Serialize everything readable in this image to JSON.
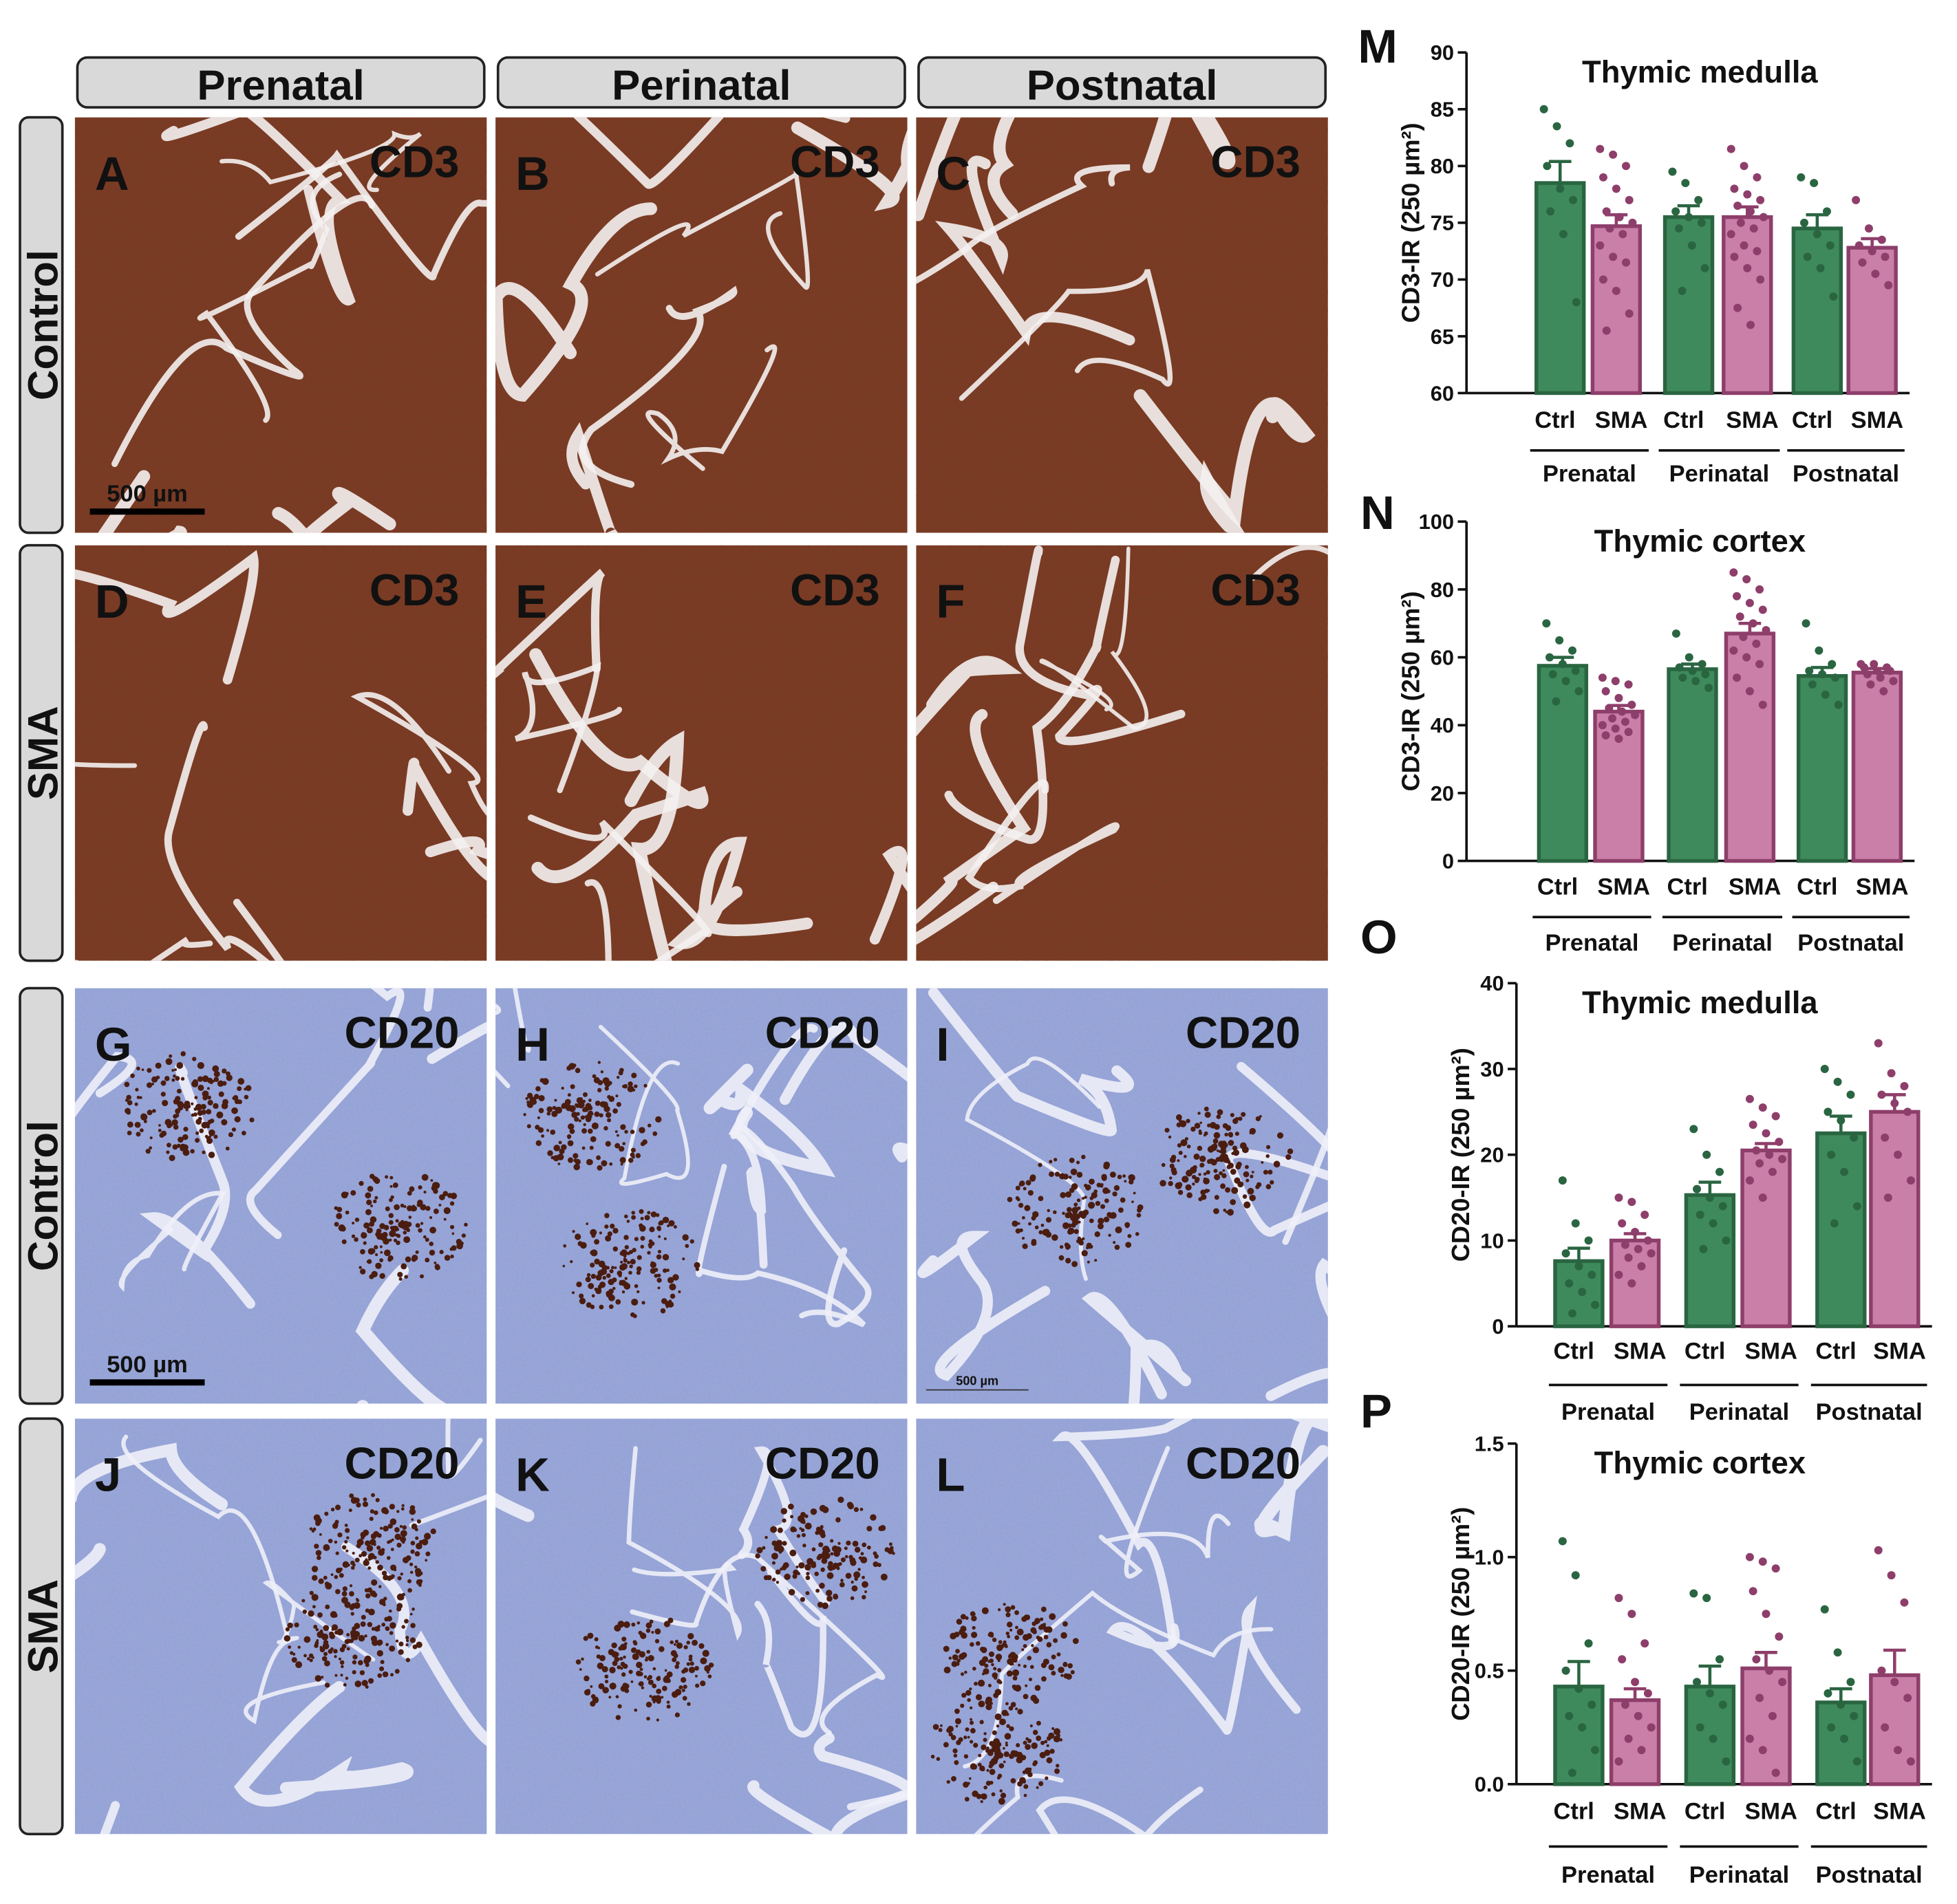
{
  "columns": [
    "Prenatal",
    "Perinatal",
    "Postnatal"
  ],
  "rows": [
    "Control",
    "SMA",
    "Control",
    "SMA"
  ],
  "panels": [
    [
      {
        "letter": "A",
        "stain": "CD3",
        "scale_bar": "500 µm"
      },
      {
        "letter": "B",
        "stain": "CD3"
      },
      {
        "letter": "C",
        "stain": "CD3"
      }
    ],
    [
      {
        "letter": "D",
        "stain": "CD3"
      },
      {
        "letter": "E",
        "stain": "CD3"
      },
      {
        "letter": "F",
        "stain": "CD3"
      }
    ],
    [
      {
        "letter": "G",
        "stain": "CD20",
        "scale_bar": "500 µm"
      },
      {
        "letter": "H",
        "stain": "CD20"
      },
      {
        "letter": "I",
        "stain": "CD20",
        "scale_bar": "500 µm"
      }
    ],
    [
      {
        "letter": "J",
        "stain": "CD20"
      },
      {
        "letter": "K",
        "stain": "CD20"
      },
      {
        "letter": "L",
        "stain": "CD20"
      }
    ]
  ],
  "chart_data": [
    {
      "type": "bar",
      "panel": "M",
      "title": "Thymic medulla",
      "ylabel": "CD3-IR (250 µm²)",
      "categories": [
        "Ctrl",
        "SMA",
        "Ctrl",
        "SMA",
        "Ctrl",
        "SMA"
      ],
      "groups": [
        "Prenatal",
        "Perinatal",
        "Postnatal"
      ],
      "bar_colors": [
        "#3e8a5c",
        "#c97fa8",
        "#3e8a5c",
        "#c97fa8",
        "#3e8a5c",
        "#c97fa8"
      ],
      "edge_colors": [
        "#2a6541",
        "#8e3e6a",
        "#2a6541",
        "#8e3e6a",
        "#2a6541",
        "#8e3e6a"
      ],
      "values": [
        78.5,
        74.7,
        75.5,
        75.5,
        74.5,
        72.8
      ],
      "errors": [
        1.9,
        1.0,
        1.0,
        0.9,
        1.2,
        0.8
      ],
      "points": [
        [
          85,
          83.5,
          82,
          80,
          78,
          77,
          76,
          74,
          68
        ],
        [
          81.5,
          81,
          80,
          79,
          78,
          77,
          76,
          75.5,
          75,
          74.5,
          74,
          73,
          72,
          71.5,
          70,
          69,
          67,
          65.5
        ],
        [
          79.5,
          78.5,
          77,
          76,
          75.5,
          75,
          74.5,
          73,
          71,
          69
        ],
        [
          81.5,
          80,
          79,
          78,
          77.5,
          77,
          76.5,
          76,
          75.5,
          75,
          74.5,
          74,
          73,
          72.5,
          72,
          71,
          70,
          67.5,
          66
        ],
        [
          79,
          78.5,
          76,
          75,
          74,
          73,
          72,
          71,
          68.5
        ],
        [
          77,
          74.5,
          73.5,
          73,
          72.5,
          72,
          71.5,
          70.5,
          69.5
        ]
      ],
      "ylim": [
        60,
        90
      ],
      "yticks": [
        60,
        65,
        70,
        75,
        80,
        85,
        90
      ]
    },
    {
      "type": "bar",
      "panel": "N",
      "title": "Thymic cortex",
      "ylabel": "CD3-IR (250 µm²)",
      "categories": [
        "Ctrl",
        "SMA",
        "Ctrl",
        "SMA",
        "Ctrl",
        "SMA"
      ],
      "groups": [
        "Prenatal",
        "Perinatal",
        "Postnatal"
      ],
      "bar_colors": [
        "#3e8a5c",
        "#c97fa8",
        "#3e8a5c",
        "#c97fa8",
        "#3e8a5c",
        "#c97fa8"
      ],
      "edge_colors": [
        "#2a6541",
        "#8e3e6a",
        "#2a6541",
        "#8e3e6a",
        "#2a6541",
        "#8e3e6a"
      ],
      "values": [
        57.5,
        44,
        56.5,
        67,
        54.5,
        55.5
      ],
      "errors": [
        2.5,
        1.8,
        1.5,
        3,
        2.5,
        1.2
      ],
      "points": [
        [
          70,
          65,
          62,
          60,
          58,
          56,
          55,
          53,
          50,
          47
        ],
        [
          54,
          53,
          52,
          50,
          48,
          46,
          45,
          44,
          43,
          42,
          41,
          40,
          39,
          38,
          37,
          36
        ],
        [
          67,
          60,
          58,
          57,
          56,
          55,
          54,
          53,
          51
        ],
        [
          85,
          83,
          80,
          78,
          76,
          74,
          72,
          70,
          68,
          66,
          64,
          62,
          60,
          58,
          54,
          50,
          46
        ],
        [
          70,
          62,
          58,
          56,
          55,
          54,
          52,
          49,
          46
        ],
        [
          58,
          58,
          57,
          57,
          56,
          56,
          55,
          54,
          53,
          52,
          50
        ]
      ],
      "ylim": [
        0,
        100
      ],
      "yticks": [
        0,
        20,
        40,
        60,
        80,
        100
      ]
    },
    {
      "type": "bar",
      "panel": "O",
      "title": "Thymic medulla",
      "ylabel": "CD20-IR (250 µm²)",
      "categories": [
        "Ctrl",
        "SMA",
        "Ctrl",
        "SMA",
        "Ctrl",
        "SMA"
      ],
      "groups": [
        "Prenatal",
        "Perinatal",
        "Postnatal"
      ],
      "bar_colors": [
        "#3e8a5c",
        "#c97fa8",
        "#3e8a5c",
        "#c97fa8",
        "#3e8a5c",
        "#c97fa8"
      ],
      "edge_colors": [
        "#2a6541",
        "#8e3e6a",
        "#2a6541",
        "#8e3e6a",
        "#2a6541",
        "#8e3e6a"
      ],
      "values": [
        7.6,
        10,
        15.3,
        20.5,
        22.5,
        25
      ],
      "errors": [
        1.5,
        0.8,
        1.5,
        0.8,
        2,
        2
      ],
      "points": [
        [
          17,
          12,
          10,
          8.5,
          7,
          6,
          5,
          4,
          2.5,
          1.5
        ],
        [
          15,
          14.5,
          13,
          12,
          11,
          10,
          9.5,
          9,
          8.5,
          8,
          7,
          6,
          5
        ],
        [
          23,
          20,
          18,
          16,
          15,
          14,
          13,
          12,
          10,
          9
        ],
        [
          26.5,
          25.5,
          24.5,
          23.5,
          22.5,
          21.5,
          20.5,
          20,
          19.5,
          19,
          18,
          17,
          15
        ],
        [
          30,
          28.5,
          27,
          25,
          24,
          22,
          20,
          18,
          14,
          12
        ],
        [
          33,
          29.5,
          28,
          27,
          26,
          25,
          22,
          20,
          17,
          15
        ]
      ],
      "ylim": [
        0,
        40
      ],
      "yticks": [
        0,
        10,
        20,
        30,
        40
      ]
    },
    {
      "type": "bar",
      "panel": "P",
      "title": "Thymic cortex",
      "ylabel": "CD20-IR (250 µm²)",
      "categories": [
        "Ctrl",
        "SMA",
        "Ctrl",
        "SMA",
        "Ctrl",
        "SMA"
      ],
      "groups": [
        "Prenatal",
        "Perinatal",
        "Postnatal"
      ],
      "bar_colors": [
        "#3e8a5c",
        "#c97fa8",
        "#3e8a5c",
        "#c97fa8",
        "#3e8a5c",
        "#c97fa8"
      ],
      "edge_colors": [
        "#2a6541",
        "#8e3e6a",
        "#2a6541",
        "#8e3e6a",
        "#2a6541",
        "#8e3e6a"
      ],
      "values": [
        0.43,
        0.37,
        0.43,
        0.51,
        0.36,
        0.48
      ],
      "errors": [
        0.11,
        0.05,
        0.09,
        0.07,
        0.06,
        0.11
      ],
      "points": [
        [
          1.07,
          0.92,
          0.62,
          0.5,
          0.42,
          0.35,
          0.3,
          0.25,
          0.15,
          0.05
        ],
        [
          0.82,
          0.75,
          0.62,
          0.55,
          0.45,
          0.4,
          0.35,
          0.3,
          0.25,
          0.2,
          0.15,
          0.1
        ],
        [
          0.84,
          0.82,
          0.55,
          0.45,
          0.4,
          0.35,
          0.25,
          0.2,
          0.1
        ],
        [
          1.0,
          0.98,
          0.95,
          0.85,
          0.75,
          0.65,
          0.55,
          0.5,
          0.45,
          0.38,
          0.3,
          0.2,
          0.15,
          0.05
        ],
        [
          0.77,
          0.58,
          0.45,
          0.4,
          0.35,
          0.3,
          0.25,
          0.2,
          0.1
        ],
        [
          1.03,
          0.92,
          0.8,
          0.5,
          0.45,
          0.38,
          0.25,
          0.15,
          0.1
        ]
      ],
      "ylim": [
        0,
        1.5
      ],
      "yticks": [
        {
          "value": 0,
          "label": "0.0"
        },
        0.5,
        {
          "value": 1,
          "label": "1.0"
        },
        1.5
      ]
    }
  ]
}
